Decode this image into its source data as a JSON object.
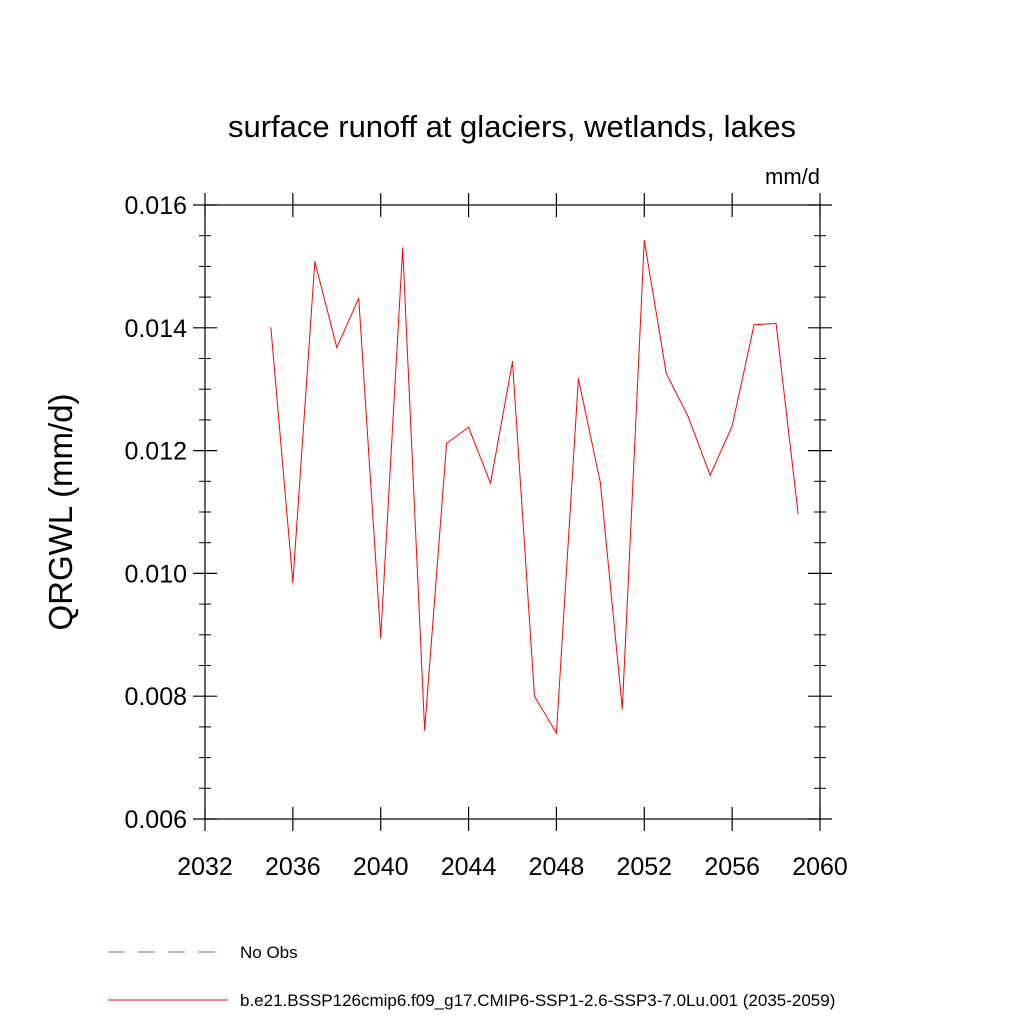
{
  "chart_data": {
    "type": "line",
    "title": "surface runoff at glaciers, wetlands, lakes",
    "units": "mm/d",
    "xlabel": "",
    "ylabel": "QRGWL  (mm/d)",
    "xlim": [
      2032,
      2060
    ],
    "ylim": [
      0.006,
      0.016
    ],
    "x_ticks": [
      "2032",
      "2036",
      "2040",
      "2044",
      "2048",
      "2052",
      "2056",
      "2060"
    ],
    "y_ticks": [
      "0.006",
      "0.008",
      "0.010",
      "0.012",
      "0.014",
      "0.016"
    ],
    "grid": false,
    "legend_position": "bottom",
    "series": [
      {
        "name": "b.e21.BSSP126cmip6.f09_g17.CMIP6-SSP1-2.6-SSP3-7.0Lu.001 (2035-2059)",
        "color": "#ff0000",
        "x": [
          2035,
          2036,
          2037,
          2038,
          2039,
          2040,
          2041,
          2042,
          2043,
          2044,
          2045,
          2046,
          2047,
          2048,
          2049,
          2050,
          2051,
          2052,
          2053,
          2054,
          2055,
          2056,
          2057,
          2058,
          2059
        ],
        "values": [
          0.014,
          0.00985,
          0.01508,
          0.01368,
          0.01448,
          0.00895,
          0.0153,
          0.00745,
          0.01212,
          0.01238,
          0.01147,
          0.01345,
          0.008,
          0.0074,
          0.01317,
          0.01148,
          0.0078,
          0.01542,
          0.01326,
          0.01255,
          0.0116,
          0.0124,
          0.01405,
          0.01407,
          0.01098
        ]
      }
    ],
    "legend": [
      {
        "label": "No Obs",
        "color": "#7b68c8",
        "style": "dashed"
      },
      {
        "label": "b.e21.BSSP126cmip6.f09_g17.CMIP6-SSP1-2.6-SSP3-7.0Lu.001 (2035-2059)",
        "color": "#ff0000",
        "style": "solid"
      }
    ]
  }
}
